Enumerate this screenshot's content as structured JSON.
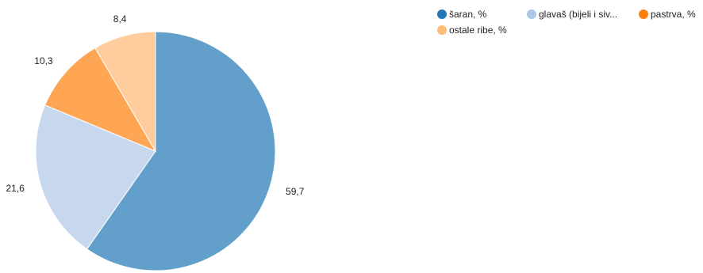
{
  "chart_data": {
    "type": "pie",
    "categories": [
      "šaran, %",
      "glavaš (bijeli i siv...",
      "pastrva, %",
      "ostale ribe, %"
    ],
    "values": [
      59.7,
      21.6,
      10.3,
      8.4
    ],
    "value_labels": [
      "59,7",
      "21,6",
      "10,3",
      "8,4"
    ],
    "colors": [
      "#62a0cb",
      "#c7d8ee",
      "#ffa654",
      "#ffcc9e"
    ],
    "legend_colors": [
      "#1f77b4",
      "#aec7e8",
      "#ff7f0e",
      "#ffbb78"
    ],
    "legend_placement": "top-right",
    "start_angle": "12 o'clock",
    "direction": "clockwise"
  }
}
